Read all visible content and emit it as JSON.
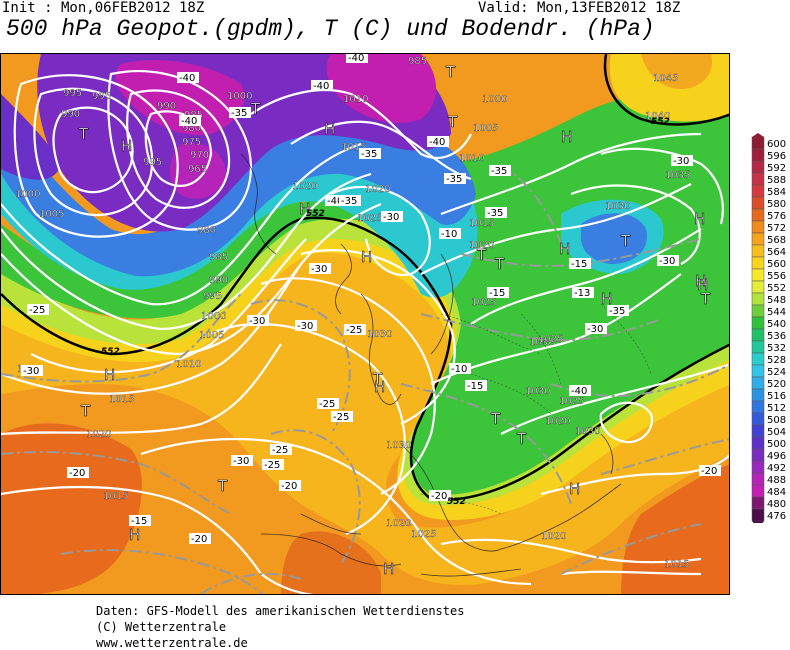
{
  "header": {
    "init": "Init : Mon,06FEB2012 18Z",
    "valid": "Valid: Mon,13FEB2012 18Z",
    "title": "500 hPa Geopot.(gpdm), T (C) und Bodendr. (hPa)"
  },
  "footer": {
    "line1": "Daten: GFS-Modell des amerikanischen Wetterdienstes",
    "line2": "(C) Wetterzentrale",
    "line3": "www.wetterzentrale.de"
  },
  "scale": {
    "values": [
      "600",
      "596",
      "592",
      "588",
      "584",
      "580",
      "576",
      "572",
      "568",
      "564",
      "560",
      "556",
      "552",
      "548",
      "544",
      "540",
      "536",
      "532",
      "528",
      "524",
      "520",
      "516",
      "512",
      "508",
      "504",
      "500",
      "496",
      "492",
      "488",
      "484",
      "480",
      "476"
    ],
    "colors": [
      "#8e1d33",
      "#a01f3c",
      "#b52844",
      "#c6314a",
      "#d23a3f",
      "#dc4d2a",
      "#e56a20",
      "#ef8a1c",
      "#f3a31c",
      "#f7bf1d",
      "#f8d41c",
      "#f6e92b",
      "#e2ee3a",
      "#b2e33a",
      "#6fcf3a",
      "#2ec33a",
      "#20c06a",
      "#22c79c",
      "#29cdcb",
      "#33c4e8",
      "#31aee9",
      "#2b94e5",
      "#2f76e2",
      "#3259dc",
      "#4142d3",
      "#5d32c8",
      "#7b2bc1",
      "#9a27be",
      "#b523b9",
      "#c31fb2",
      "#7d1773",
      "#4c0d4a"
    ]
  },
  "map": {
    "colors": {
      "orange_dark": "#e86a1d",
      "orange": "#f29a1f",
      "yellow_orange": "#f7bf1d",
      "yellow": "#f8d41c",
      "green": "#3cc43a",
      "light_green": "#8fd83a",
      "cyan": "#2bc8d0",
      "blue": "#3a7ee2",
      "purple": "#7a2cc2",
      "magenta": "#c21fb0"
    },
    "labels": [
      {
        "name": "pressure-label",
        "text": "995"
      },
      {
        "name": "pressure-label",
        "text": "990"
      },
      {
        "name": "pressure-label",
        "text": "990"
      },
      {
        "name": "pressure-label",
        "text": "985"
      },
      {
        "name": "pressure-label",
        "text": "980"
      },
      {
        "name": "pressure-label",
        "text": "975"
      },
      {
        "name": "pressure-label",
        "text": "970"
      },
      {
        "name": "pressure-label",
        "text": "965"
      },
      {
        "name": "pressure-label",
        "text": "1000"
      },
      {
        "name": "pressure-label",
        "text": "995"
      },
      {
        "name": "pressure-label",
        "text": "995"
      },
      {
        "name": "pressure-label",
        "text": "1000"
      },
      {
        "name": "pressure-label",
        "text": "1005"
      },
      {
        "name": "pressure-label",
        "text": "980"
      },
      {
        "name": "pressure-label",
        "text": "985"
      },
      {
        "name": "pressure-label",
        "text": "990"
      },
      {
        "name": "pressure-label",
        "text": "995"
      },
      {
        "name": "pressure-label",
        "text": "1000"
      },
      {
        "name": "pressure-label",
        "text": "1005"
      },
      {
        "name": "pressure-label",
        "text": "1010"
      },
      {
        "name": "pressure-label",
        "text": "1015"
      },
      {
        "name": "pressure-label",
        "text": "1020"
      },
      {
        "name": "pressure-label",
        "text": "1020"
      },
      {
        "name": "pressure-label",
        "text": "1020"
      },
      {
        "name": "pressure-label",
        "text": "1020"
      },
      {
        "name": "pressure-label",
        "text": "1025"
      },
      {
        "name": "pressure-label",
        "text": "1030"
      },
      {
        "name": "pressure-label",
        "text": "1030"
      },
      {
        "name": "pressure-label",
        "text": "1030"
      },
      {
        "name": "pressure-label",
        "text": "1015"
      },
      {
        "name": "pressure-label",
        "text": "1020"
      },
      {
        "name": "pressure-label",
        "text": "1025"
      },
      {
        "name": "pressure-label",
        "text": "1025"
      },
      {
        "name": "pressure-label",
        "text": "1030"
      },
      {
        "name": "pressure-label",
        "text": "1025"
      },
      {
        "name": "pressure-label",
        "text": "1020"
      },
      {
        "name": "pressure-label",
        "text": "1025"
      },
      {
        "name": "pressure-label",
        "text": "1030"
      },
      {
        "name": "pressure-label",
        "text": "1035"
      },
      {
        "name": "pressure-label",
        "text": "1040"
      },
      {
        "name": "pressure-label",
        "text": "1045"
      },
      {
        "name": "pressure-label",
        "text": "1030"
      },
      {
        "name": "pressure-label",
        "text": "1010"
      },
      {
        "name": "pressure-label",
        "text": "1015"
      },
      {
        "name": "pressure-label",
        "text": "1010"
      },
      {
        "name": "pressure-label",
        "text": "1005"
      },
      {
        "name": "pressure-label",
        "text": "1000"
      },
      {
        "name": "pressure-label",
        "text": "985"
      },
      {
        "name": "pressure-label",
        "text": "1020"
      },
      {
        "name": "pressure-label",
        "text": "1020"
      },
      {
        "name": "pressure-label",
        "text": "1015"
      },
      {
        "name": "pressure-label",
        "text": "1015"
      }
    ],
    "temps": [
      "-40",
      "-40",
      "-40",
      "-40",
      "-40",
      "-40",
      "-35",
      "-35",
      "-35",
      "-35",
      "-35",
      "-35",
      "-30",
      "-30",
      "-30",
      "-30",
      "-30",
      "-30",
      "-30",
      "-25",
      "-25",
      "-25",
      "-25",
      "-25",
      "-25",
      "-20",
      "-20",
      "-20",
      "-20",
      "-20",
      "-15",
      "-15",
      "-15",
      "-15",
      "-10",
      "-10",
      "-13",
      "-30",
      "-40",
      "-35",
      "-30"
    ],
    "centers": [
      "H",
      "T",
      "H",
      "T",
      "H",
      "T",
      "H",
      "H",
      "H",
      "T",
      "T",
      "T",
      "H",
      "H",
      "H",
      "T",
      "T",
      "H",
      "T",
      "H",
      "T",
      "H",
      "T",
      "H",
      "H",
      "T",
      "H",
      "T"
    ],
    "geopotential_label": "552"
  }
}
